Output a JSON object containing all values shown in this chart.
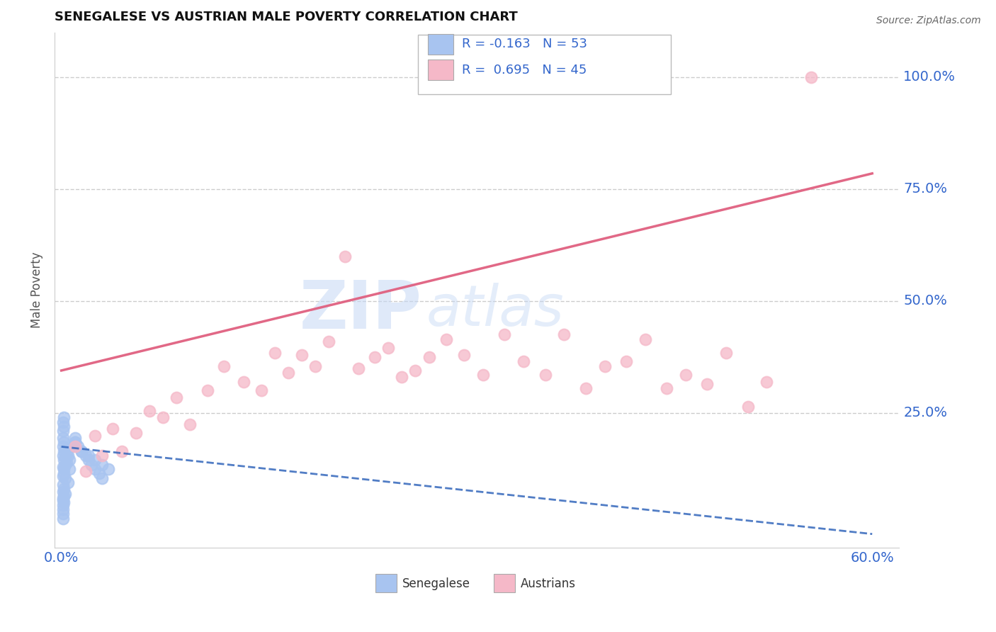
{
  "title": "SENEGALESE VS AUSTRIAN MALE POVERTY CORRELATION CHART",
  "source": "Source: ZipAtlas.com",
  "ylabel": "Male Poverty",
  "blue_R": "-0.163",
  "blue_N": "53",
  "pink_R": "0.695",
  "pink_N": "45",
  "blue_color": "#a8c4f0",
  "pink_color": "#f5b8c8",
  "blue_line_color": "#3366bb",
  "pink_line_color": "#e06080",
  "watermark_zip": "ZIP",
  "watermark_atlas": "atlas",
  "legend_blue_label": "Senegalese",
  "legend_pink_label": "Austrians",
  "senegalese_x": [
    0.001,
    0.001,
    0.001,
    0.001,
    0.001,
    0.002,
    0.002,
    0.002,
    0.002,
    0.003,
    0.003,
    0.003,
    0.004,
    0.004,
    0.005,
    0.005,
    0.006,
    0.006,
    0.001,
    0.001,
    0.002,
    0.002,
    0.001,
    0.001,
    0.001,
    0.002,
    0.003,
    0.001,
    0.002,
    0.001,
    0.001,
    0.002,
    0.001,
    0.003,
    0.002,
    0.001,
    0.01,
    0.012,
    0.015,
    0.018,
    0.02,
    0.022,
    0.025,
    0.028,
    0.03,
    0.008,
    0.01,
    0.015,
    0.02,
    0.025,
    0.03,
    0.035,
    0.01
  ],
  "senegalese_y": [
    0.195,
    0.175,
    0.155,
    0.13,
    0.11,
    0.185,
    0.165,
    0.145,
    0.125,
    0.17,
    0.15,
    0.135,
    0.16,
    0.14,
    0.155,
    0.095,
    0.145,
    0.125,
    0.21,
    0.23,
    0.22,
    0.24,
    0.09,
    0.075,
    0.06,
    0.08,
    0.07,
    0.055,
    0.065,
    0.045,
    0.035,
    0.05,
    0.025,
    0.105,
    0.115,
    0.015,
    0.185,
    0.175,
    0.165,
    0.155,
    0.145,
    0.135,
    0.125,
    0.115,
    0.105,
    0.175,
    0.185,
    0.165,
    0.155,
    0.145,
    0.135,
    0.125,
    0.195
  ],
  "austrians_x": [
    0.01,
    0.018,
    0.025,
    0.03,
    0.038,
    0.045,
    0.055,
    0.065,
    0.075,
    0.085,
    0.095,
    0.108,
    0.12,
    0.135,
    0.148,
    0.158,
    0.168,
    0.178,
    0.188,
    0.198,
    0.21,
    0.22,
    0.232,
    0.242,
    0.252,
    0.262,
    0.272,
    0.285,
    0.298,
    0.312,
    0.328,
    0.342,
    0.358,
    0.372,
    0.388,
    0.402,
    0.418,
    0.432,
    0.448,
    0.462,
    0.478,
    0.492,
    0.508,
    0.522,
    0.555
  ],
  "austrians_y": [
    0.175,
    0.12,
    0.2,
    0.155,
    0.215,
    0.165,
    0.205,
    0.255,
    0.24,
    0.285,
    0.225,
    0.3,
    0.355,
    0.32,
    0.3,
    0.385,
    0.34,
    0.38,
    0.355,
    0.41,
    0.6,
    0.35,
    0.375,
    0.395,
    0.33,
    0.345,
    0.375,
    0.415,
    0.38,
    0.335,
    0.425,
    0.365,
    0.335,
    0.425,
    0.305,
    0.355,
    0.365,
    0.415,
    0.305,
    0.335,
    0.315,
    0.385,
    0.265,
    0.32,
    1.0
  ],
  "pink_line_x0": 0.0,
  "pink_line_y0": 0.345,
  "pink_line_x1": 0.6,
  "pink_line_y1": 0.785,
  "blue_line_x0": 0.0,
  "blue_line_y0": 0.175,
  "blue_line_x1": 0.6,
  "blue_line_y1": -0.02,
  "xtick_left_label": "0.0%",
  "xtick_right_label": "60.0%",
  "ytick_labels": [
    "25.0%",
    "50.0%",
    "75.0%",
    "100.0%"
  ],
  "ytick_vals": [
    0.25,
    0.5,
    0.75,
    1.0
  ],
  "xlim": [
    -0.005,
    0.62
  ],
  "ylim": [
    -0.05,
    1.1
  ],
  "background_color": "#ffffff",
  "grid_color": "#cccccc",
  "tick_label_color": "#3366cc",
  "title_color": "#111111",
  "source_color": "#666666",
  "ylabel_color": "#555555"
}
